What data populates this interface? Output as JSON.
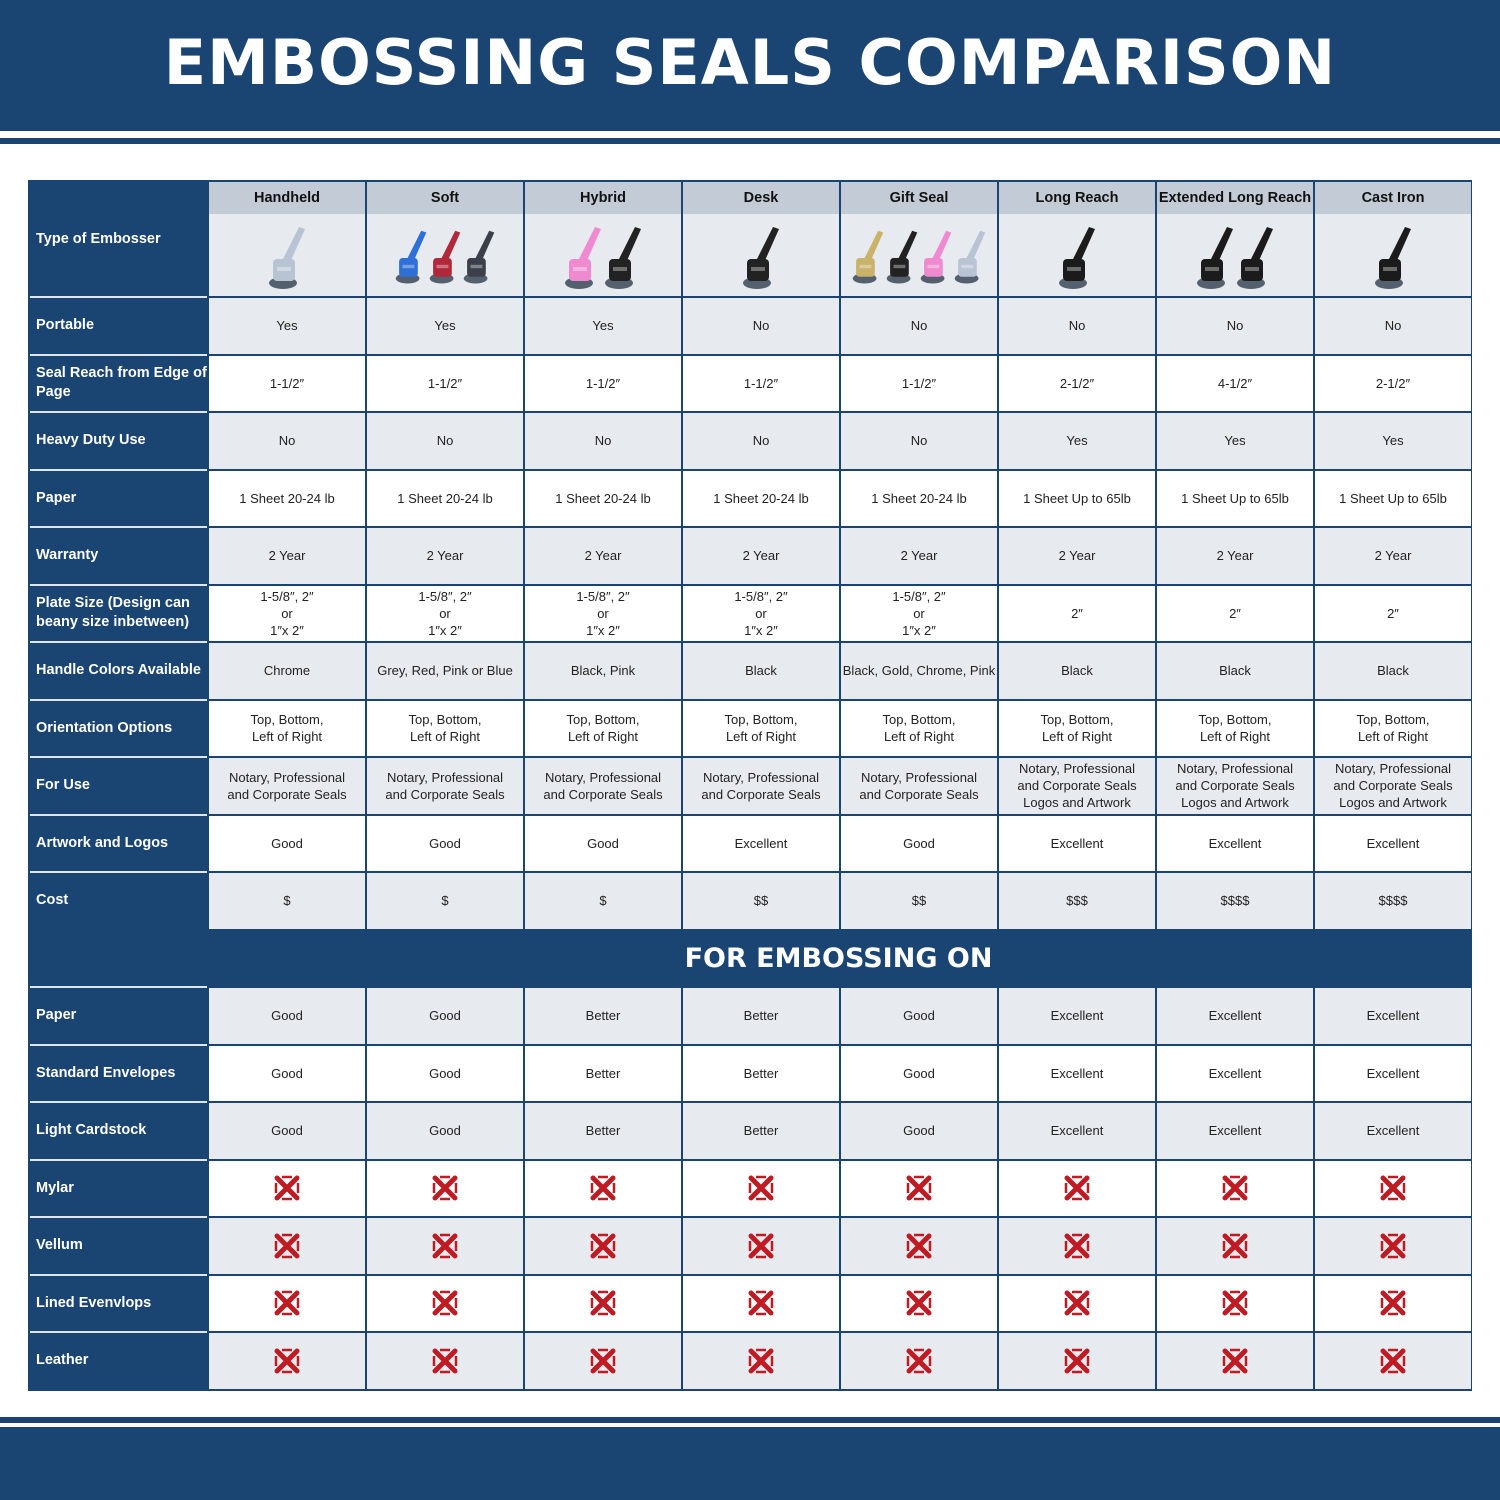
{
  "title": "EMBOSSING SEALS COMPARISON",
  "colors": {
    "brand": "#1a4472",
    "header_cell": "#c3ccd6",
    "alt_row": "#e7ebf0",
    "cross": "#c01a22"
  },
  "table": {
    "corner_label": "Type of Embosser",
    "columns": [
      {
        "name": "Handheld",
        "image": "chrome-handheld-embosser",
        "count": 1,
        "colors": [
          "#b8c4d4"
        ]
      },
      {
        "name": "Soft",
        "image": "blue-red-grey-soft-embossers",
        "count": 3,
        "colors": [
          "#2f6fd8",
          "#b0283a",
          "#3a3f4a"
        ]
      },
      {
        "name": "Hybrid",
        "image": "pink-black-hybrid-embossers",
        "count": 2,
        "colors": [
          "#f08ad0",
          "#222222"
        ]
      },
      {
        "name": "Desk",
        "image": "black-desk-embosser",
        "count": 1,
        "colors": [
          "#222222"
        ]
      },
      {
        "name": "Gift Seal",
        "image": "gold-black-pink-chrome-gift-seals",
        "count": 4,
        "colors": [
          "#c9b36a",
          "#222222",
          "#f08ad0",
          "#b8c4d4"
        ]
      },
      {
        "name": "Long Reach",
        "image": "black-long-reach-embosser",
        "count": 1,
        "colors": [
          "#1b1b1b"
        ]
      },
      {
        "name": "Extended Long Reach",
        "image": "black-extended-long-reach-embossers",
        "count": 2,
        "colors": [
          "#1b1b1b",
          "#1b1b1b"
        ]
      },
      {
        "name": "Cast Iron",
        "image": "black-cast-iron-embosser",
        "count": 1,
        "colors": [
          "#1b1b1b"
        ]
      }
    ],
    "rows": [
      {
        "label": "Portable",
        "values": [
          "Yes",
          "Yes",
          "Yes",
          "No",
          "No",
          "No",
          "No",
          "No"
        ]
      },
      {
        "label": "Seal Reach from Edge of Page",
        "values": [
          "1-1/2″",
          "1-1/2″",
          "1-1/2″",
          "1-1/2″",
          "1-1/2″",
          "2-1/2″",
          "4-1/2″",
          "2-1/2″"
        ]
      },
      {
        "label": "Heavy Duty Use",
        "values": [
          "No",
          "No",
          "No",
          "No",
          "No",
          "Yes",
          "Yes",
          "Yes"
        ]
      },
      {
        "label": "Paper",
        "values": [
          "1 Sheet 20-24 lb",
          "1 Sheet 20-24 lb",
          "1 Sheet 20-24 lb",
          "1 Sheet 20-24 lb",
          "1 Sheet 20-24 lb",
          "1 Sheet Up to 65lb",
          "1 Sheet Up to 65lb",
          "1 Sheet Up to 65lb"
        ]
      },
      {
        "label": "Warranty",
        "values": [
          "2 Year",
          "2 Year",
          "2 Year",
          "2 Year",
          "2 Year",
          "2 Year",
          "2 Year",
          "2 Year"
        ]
      },
      {
        "label": "Plate Size (Design can beany size inbetween)",
        "values": [
          "1-5/8″, 2″\nor\n1″x 2″",
          "1-5/8″, 2″\nor\n1″x 2″",
          "1-5/8″, 2″\nor\n1″x 2″",
          "1-5/8″, 2″\nor\n1″x 2″",
          "1-5/8″, 2″\nor\n1″x 2″",
          "2″",
          "2″",
          "2″"
        ]
      },
      {
        "label": "Handle Colors Available",
        "values": [
          "Chrome",
          "Grey, Red, Pink or Blue",
          "Black, Pink",
          "Black",
          "Black, Gold, Chrome, Pink",
          "Black",
          "Black",
          "Black"
        ]
      },
      {
        "label": "Orientation Options",
        "values": [
          "Top, Bottom,\nLeft of Right",
          "Top, Bottom,\nLeft of Right",
          "Top, Bottom,\nLeft of Right",
          "Top, Bottom,\nLeft of Right",
          "Top, Bottom,\nLeft of Right",
          "Top, Bottom,\nLeft of Right",
          "Top, Bottom,\nLeft of Right",
          "Top, Bottom,\nLeft of Right"
        ]
      },
      {
        "label": "For Use",
        "values": [
          "Notary, Professional\nand Corporate Seals",
          "Notary, Professional\nand Corporate Seals",
          "Notary, Professional\nand Corporate Seals",
          "Notary, Professional\nand Corporate Seals",
          "Notary, Professional\nand Corporate Seals",
          "Notary, Professional\nand Corporate Seals\nLogos and Artwork",
          "Notary, Professional\nand Corporate Seals\nLogos and Artwork",
          "Notary, Professional\nand Corporate Seals\nLogos and Artwork"
        ]
      },
      {
        "label": "Artwork and Logos",
        "values": [
          "Good",
          "Good",
          "Good",
          "Excellent",
          "Good",
          "Excellent",
          "Excellent",
          "Excellent"
        ]
      },
      {
        "label": "Cost",
        "values": [
          "$",
          "$",
          "$",
          "$$",
          "$$",
          "$$$",
          "$$$$",
          "$$$$"
        ]
      }
    ],
    "section_title": "FOR EMBOSSING ON",
    "embossing_rows": [
      {
        "label": "Paper",
        "values": [
          "Good",
          "Good",
          "Better",
          "Better",
          "Good",
          "Excellent",
          "Excellent",
          "Excellent"
        ]
      },
      {
        "label": "Standard Envelopes",
        "values": [
          "Good",
          "Good",
          "Better",
          "Better",
          "Good",
          "Excellent",
          "Excellent",
          "Excellent"
        ]
      },
      {
        "label": "Light Cardstock",
        "values": [
          "Good",
          "Good",
          "Better",
          "Better",
          "Good",
          "Excellent",
          "Excellent",
          "Excellent"
        ]
      },
      {
        "label": "Mylar",
        "values": [
          "x-icon",
          "x-icon",
          "x-icon",
          "x-icon",
          "x-icon",
          "x-icon",
          "x-icon",
          "x-icon"
        ]
      },
      {
        "label": "Vellum",
        "values": [
          "x-icon",
          "x-icon",
          "x-icon",
          "x-icon",
          "x-icon",
          "x-icon",
          "x-icon",
          "x-icon"
        ]
      },
      {
        "label": "Lined Evenvlops",
        "values": [
          "x-icon",
          "x-icon",
          "x-icon",
          "x-icon",
          "x-icon",
          "x-icon",
          "x-icon",
          "x-icon"
        ]
      },
      {
        "label": "Leather",
        "values": [
          "x-icon",
          "x-icon",
          "x-icon",
          "x-icon",
          "x-icon",
          "x-icon",
          "x-icon",
          "x-icon"
        ]
      }
    ]
  }
}
